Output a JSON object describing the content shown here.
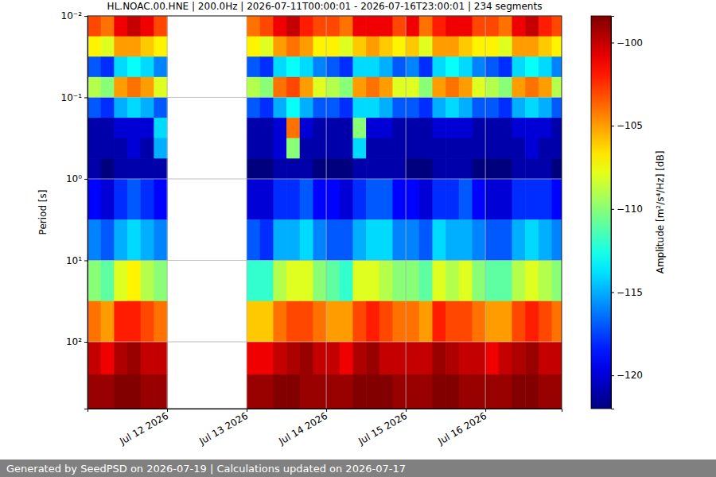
{
  "chart_data": {
    "type": "heatmap",
    "title": "HL.NOAC.00.HNE | 200.0Hz | 2026-07-11T00:00:01 - 2026-07-16T23:00:01 | 234 segments",
    "y_label": "Period [s]",
    "footer": "Generated by SeedPSD on 2026-07-19 | Calculations updated on 2026-07-17",
    "log": "y",
    "grid": true,
    "xlim": [
      "2026-07-11T00:00:01",
      "2026-07-16T23:00:01"
    ],
    "xticks": [
      {
        "value": "2026-07-12T00:00:00",
        "label": "Jul 12 2026"
      },
      {
        "value": "2026-07-13T00:00:00",
        "label": "Jul 13 2026"
      },
      {
        "value": "2026-07-14T00:00:00",
        "label": "Jul 14 2026"
      },
      {
        "value": "2026-07-15T00:00:00",
        "label": "Jul 15 2026"
      },
      {
        "value": "2026-07-16T00:00:00",
        "label": "Jul 16 2026"
      }
    ],
    "ylim": [
      0.01,
      660
    ],
    "yticks": [
      {
        "value": 0.01,
        "label": "10⁻²"
      },
      {
        "value": 0.1,
        "label": "10⁻¹"
      },
      {
        "value": 1,
        "label": "10⁰"
      },
      {
        "value": 10,
        "label": "10¹"
      },
      {
        "value": 100,
        "label": "10²"
      }
    ],
    "x": [
      "2026-07-11T00:00:00",
      "2026-07-11T04:00:00",
      "2026-07-11T08:00:00",
      "2026-07-11T12:00:00",
      "2026-07-11T16:00:00",
      "2026-07-11T20:00:00",
      "2026-07-12T00:00:00",
      "2026-07-12T04:00:00",
      "2026-07-12T08:00:00",
      "2026-07-12T12:00:00",
      "2026-07-12T16:00:00",
      "2026-07-12T20:00:00",
      "2026-07-13T00:00:00",
      "2026-07-13T04:00:00",
      "2026-07-13T08:00:00",
      "2026-07-13T12:00:00",
      "2026-07-13T16:00:00",
      "2026-07-13T20:00:00",
      "2026-07-14T00:00:00",
      "2026-07-14T04:00:00",
      "2026-07-14T08:00:00",
      "2026-07-14T12:00:00",
      "2026-07-14T16:00:00",
      "2026-07-14T20:00:00",
      "2026-07-15T00:00:00",
      "2026-07-15T04:00:00",
      "2026-07-15T08:00:00",
      "2026-07-15T12:00:00",
      "2026-07-15T16:00:00",
      "2026-07-15T20:00:00",
      "2026-07-16T00:00:00",
      "2026-07-16T04:00:00",
      "2026-07-16T08:00:00",
      "2026-07-16T12:00:00",
      "2026-07-16T16:00:00",
      "2026-07-16T20:00:00"
    ],
    "period_edges": [
      0.01,
      0.0178,
      0.0316,
      0.0562,
      0.1,
      0.178,
      0.316,
      0.562,
      1,
      3.16,
      10,
      31.6,
      100,
      251,
      660
    ],
    "z": [
      [
        -103,
        -104,
        -101,
        -100,
        -101,
        -103,
        null,
        null,
        null,
        null,
        null,
        null,
        -104,
        -103,
        -101,
        -100,
        -102,
        -103,
        -103,
        -104,
        -101,
        -101,
        -101,
        -103,
        -101,
        -104,
        -102,
        -101,
        -101,
        -103,
        -103,
        -104,
        -101,
        -100,
        -102,
        -103
      ],
      [
        -107,
        -108,
        -105,
        -105,
        -106,
        -107,
        null,
        null,
        null,
        null,
        null,
        null,
        -107,
        -108,
        -105,
        -104,
        -105,
        -107,
        -107,
        -108,
        -106,
        -105,
        -106,
        -107,
        -106,
        -108,
        -105,
        -105,
        -106,
        -107,
        -107,
        -108,
        -105,
        -105,
        -106,
        -107
      ],
      [
        -117,
        -118,
        -114,
        -113,
        -114,
        -116,
        null,
        null,
        null,
        null,
        null,
        null,
        -117,
        -118,
        -114,
        -113,
        -114,
        -116,
        -117,
        -118,
        -114,
        -114,
        -115,
        -117,
        -116,
        -118,
        -114,
        -113,
        -114,
        -116,
        -117,
        -118,
        -114,
        -113,
        -114,
        -116
      ],
      [
        -109,
        -110,
        -105,
        -104,
        -105,
        -108,
        null,
        null,
        null,
        null,
        null,
        null,
        -109,
        -110,
        -104,
        -103,
        -105,
        -108,
        -109,
        -110,
        -105,
        -104,
        -105,
        -108,
        -108,
        -110,
        -105,
        -104,
        -105,
        -108,
        -109,
        -110,
        -105,
        -104,
        -105,
        -109
      ],
      [
        -117,
        -118,
        -115,
        -114,
        -115,
        -117,
        null,
        null,
        null,
        null,
        null,
        null,
        -117,
        -118,
        -115,
        -113,
        -115,
        -117,
        -117,
        -118,
        -114,
        -114,
        -115,
        -117,
        -117,
        -118,
        -115,
        -114,
        -115,
        -117,
        -117,
        -118,
        -115,
        -114,
        -115,
        -117
      ],
      [
        -121,
        -121,
        -120,
        -120,
        -120,
        -114,
        null,
        null,
        null,
        null,
        null,
        null,
        -121,
        -121,
        -120,
        -104,
        -120,
        -121,
        -121,
        -121,
        -110,
        -120,
        -120,
        -121,
        -121,
        -121,
        -120,
        -120,
        -120,
        -121,
        -121,
        -121,
        -120,
        -120,
        -120,
        -121
      ],
      [
        -121,
        -121,
        -121,
        -120,
        -121,
        -115,
        null,
        null,
        null,
        null,
        null,
        null,
        -121,
        -121,
        -120,
        -110,
        -121,
        -121,
        -121,
        -121,
        -114,
        -121,
        -121,
        -121,
        -121,
        -121,
        -121,
        -121,
        -121,
        -121,
        -121,
        -121,
        -121,
        -120,
        -121,
        -121
      ],
      [
        -121,
        -122,
        -121,
        -121,
        -121,
        -121,
        null,
        null,
        null,
        null,
        null,
        null,
        -122,
        -122,
        -121,
        -121,
        -121,
        -122,
        -122,
        -122,
        -121,
        -121,
        -121,
        -121,
        -122,
        -122,
        -121,
        -121,
        -121,
        -122,
        -122,
        -122,
        -121,
        -121,
        -121,
        -122
      ],
      [
        -119,
        -120,
        -118,
        -117,
        -118,
        -119,
        null,
        null,
        null,
        null,
        null,
        null,
        -120,
        -120,
        -118,
        -118,
        -117,
        -119,
        -119,
        -120,
        -118,
        -117,
        -117,
        -119,
        -119,
        -120,
        -118,
        -118,
        -117,
        -119,
        -120,
        -120,
        -118,
        -118,
        -118,
        -119
      ],
      [
        -116,
        -117,
        -115,
        -114,
        -115,
        -116,
        null,
        null,
        null,
        null,
        null,
        null,
        -117,
        -118,
        -115,
        -115,
        -114,
        -116,
        -117,
        -117,
        -115,
        -114,
        -114,
        -116,
        -116,
        -117,
        -114,
        -115,
        -115,
        -116,
        -117,
        -117,
        -115,
        -114,
        -115,
        -116
      ],
      [
        -110,
        -111,
        -108,
        -107,
        -109,
        -110,
        null,
        null,
        null,
        null,
        null,
        null,
        -112,
        -112,
        -109,
        -108,
        -108,
        -110,
        -111,
        -112,
        -108,
        -108,
        -109,
        -110,
        -110,
        -111,
        -108,
        -109,
        -108,
        -110,
        -111,
        -111,
        -109,
        -108,
        -109,
        -110
      ],
      [
        -104,
        -105,
        -102,
        -102,
        -103,
        -104,
        null,
        null,
        null,
        null,
        null,
        null,
        -106,
        -106,
        -104,
        -103,
        -103,
        -104,
        -105,
        -105,
        -103,
        -102,
        -103,
        -104,
        -104,
        -105,
        -102,
        -103,
        -103,
        -104,
        -105,
        -105,
        -103,
        -102,
        -103,
        -104
      ],
      [
        -100,
        -101,
        -99.5,
        -99,
        -100,
        -100,
        null,
        null,
        null,
        null,
        null,
        null,
        -101,
        -101,
        -100,
        -99.5,
        -99,
        -100,
        -100,
        -101,
        -99.5,
        -99,
        -100,
        -100,
        -100,
        -100,
        -99,
        -99.5,
        -100,
        -100,
        -101,
        -100,
        -99.5,
        -99,
        -100,
        -100
      ],
      [
        -99,
        -99,
        -98.5,
        -98.5,
        -99,
        -99,
        null,
        null,
        null,
        null,
        null,
        null,
        -99,
        -99,
        -98.5,
        -98.5,
        -99,
        -99,
        -99,
        -99,
        -98.5,
        -98.5,
        -98.5,
        -99,
        -99,
        -99,
        -98.5,
        -98.5,
        -99,
        -99,
        -99,
        -99,
        -98.5,
        -98.5,
        -99,
        -99
      ]
    ],
    "colorbar": {
      "label": "Amplitude [m²/s⁴/Hz] [dB]",
      "range": [
        -122,
        -98.4
      ],
      "ticks": [
        {
          "value": -100,
          "label": "−100"
        },
        {
          "value": -105,
          "label": "−105"
        },
        {
          "value": -110,
          "label": "−110"
        },
        {
          "value": -115,
          "label": "−115"
        },
        {
          "value": -120,
          "label": "−120"
        }
      ]
    }
  }
}
